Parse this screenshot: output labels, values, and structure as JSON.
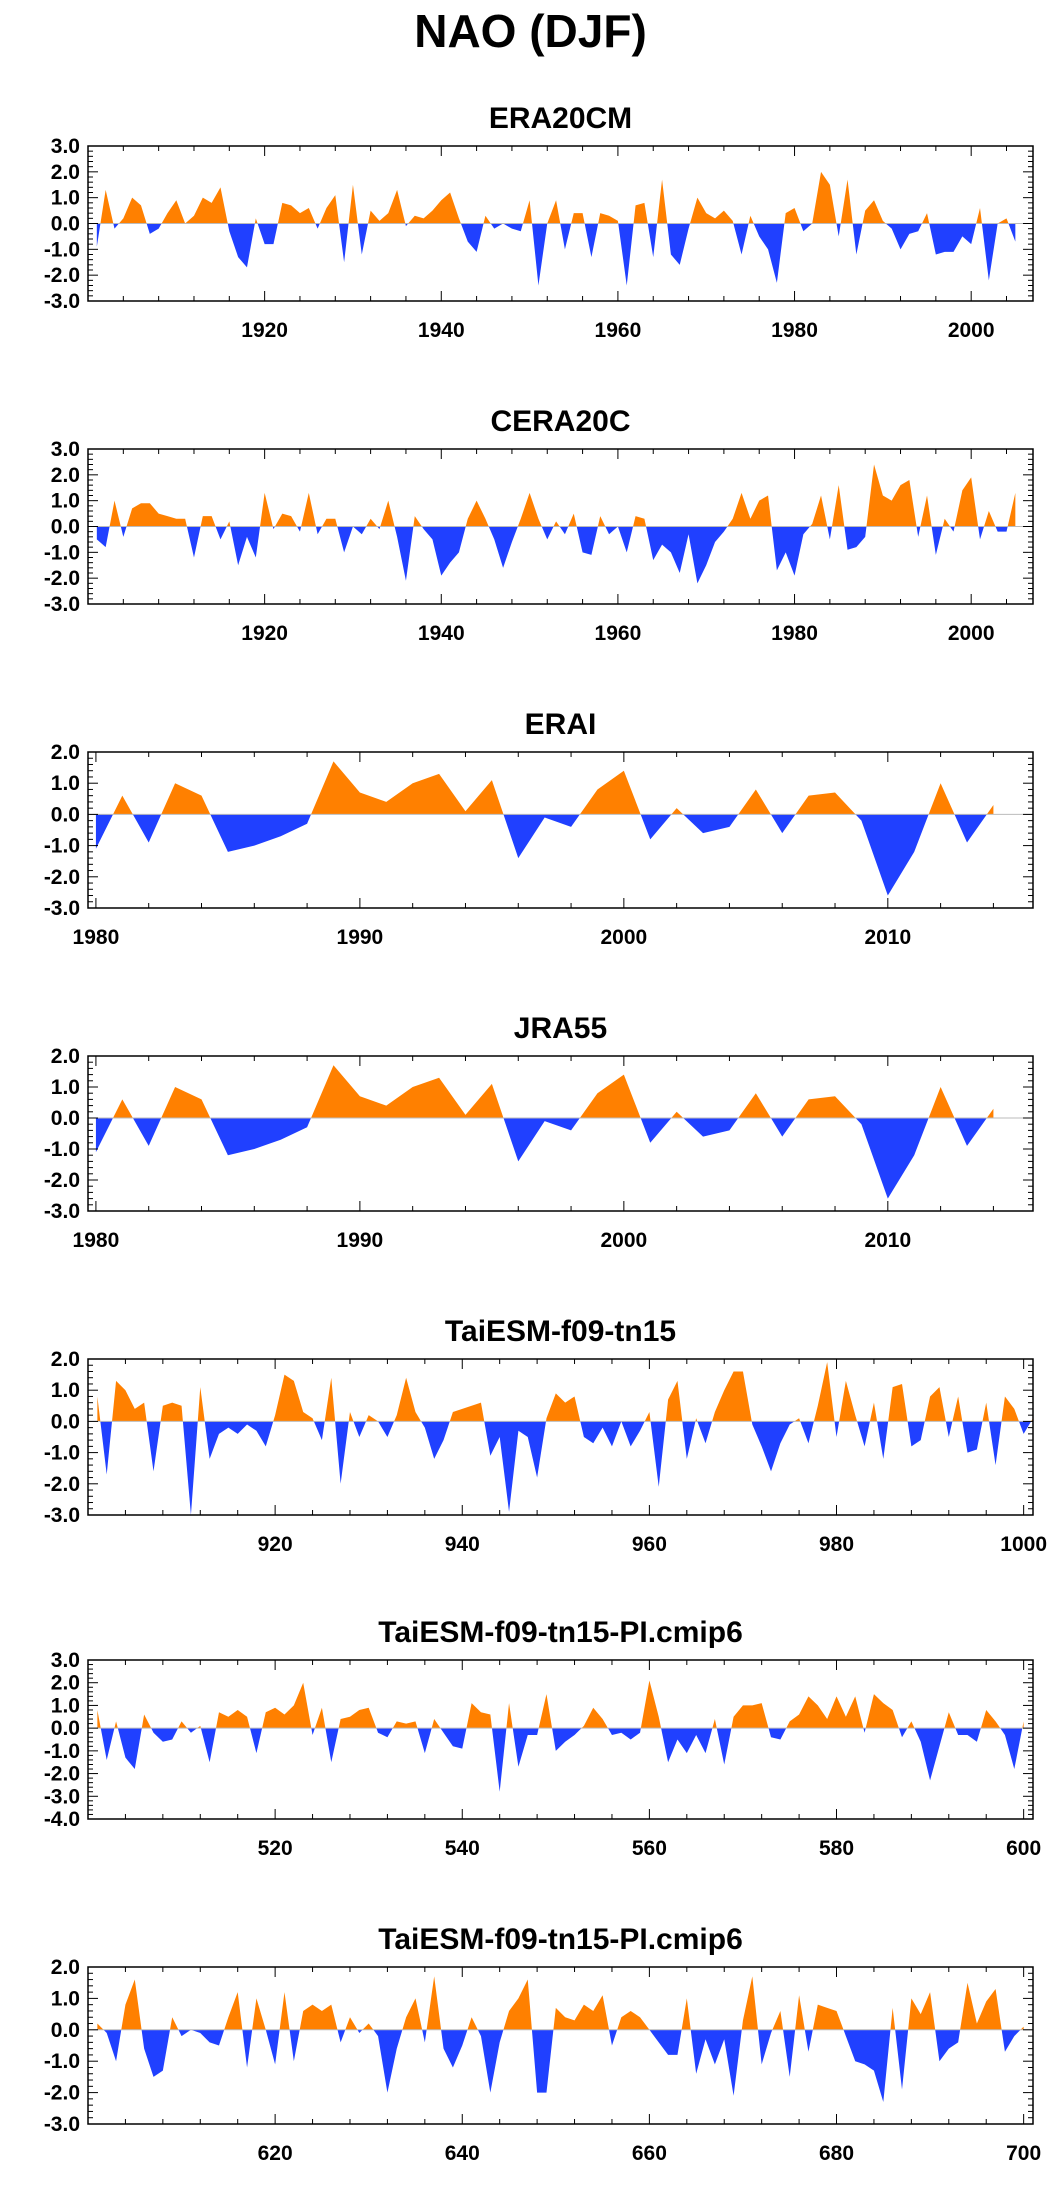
{
  "figure": {
    "title": "NAO (DJF)"
  },
  "colors": {
    "positive": "#ff8000",
    "negative": "#2040ff",
    "axis": "#000000",
    "zero_line": "#bbbbbb"
  },
  "chart_data": [
    {
      "type": "area",
      "title": "ERA20CM",
      "xlim": [
        1900,
        2007
      ],
      "ylim": [
        -3.0,
        3.0
      ],
      "yticks": [
        "3.0",
        "2.0",
        "1.0",
        "0.0",
        "-1.0",
        "-2.0",
        "-3.0"
      ],
      "xticks": [
        1920,
        1940,
        1960,
        1980,
        2000
      ],
      "x_start": 1901,
      "values": [
        -0.9,
        1.3,
        -0.2,
        0.2,
        1.0,
        0.7,
        -0.4,
        -0.2,
        0.4,
        0.9,
        0.0,
        0.3,
        1.0,
        0.8,
        1.4,
        -0.3,
        -1.3,
        -1.7,
        0.2,
        -0.8,
        -0.8,
        0.8,
        0.7,
        0.4,
        0.6,
        -0.2,
        0.6,
        1.1,
        -1.5,
        1.5,
        -1.2,
        0.5,
        0.1,
        0.4,
        1.3,
        -0.1,
        0.3,
        0.2,
        0.5,
        0.9,
        1.2,
        0.2,
        -0.7,
        -1.1,
        0.3,
        -0.2,
        0.0,
        -0.2,
        -0.3,
        0.9,
        -2.4,
        0.0,
        0.9,
        -1.0,
        0.4,
        0.4,
        -1.3,
        0.4,
        0.3,
        0.1,
        -2.4,
        0.7,
        0.8,
        -1.3,
        1.7,
        -1.2,
        -1.6,
        -0.2,
        1.0,
        0.4,
        0.2,
        0.5,
        0.1,
        -1.2,
        0.3,
        -0.5,
        -1.0,
        -2.3,
        0.4,
        0.6,
        -0.3,
        0.0,
        2.0,
        1.5,
        -0.5,
        1.7,
        -1.2,
        0.5,
        0.9,
        0.1,
        -0.2,
        -1.0,
        -0.4,
        -0.3,
        0.4,
        -1.2,
        -1.1,
        -1.1,
        -0.5,
        -0.8,
        0.6,
        -2.2,
        0.0,
        0.2,
        -0.7
      ]
    },
    {
      "type": "area",
      "title": "CERA20C",
      "xlim": [
        1900,
        2007
      ],
      "ylim": [
        -3.0,
        3.0
      ],
      "yticks": [
        "3.0",
        "2.0",
        "1.0",
        "0.0",
        "-1.0",
        "-2.0",
        "-3.0"
      ],
      "xticks": [
        1920,
        1940,
        1960,
        1980,
        2000
      ],
      "x_start": 1901,
      "values": [
        -0.5,
        -0.8,
        1.0,
        -0.4,
        0.7,
        0.9,
        0.9,
        0.5,
        0.4,
        0.3,
        0.3,
        -1.2,
        0.4,
        0.4,
        -0.5,
        0.2,
        -1.5,
        -0.4,
        -1.2,
        1.3,
        -0.1,
        0.5,
        0.4,
        -0.2,
        1.3,
        -0.3,
        0.3,
        0.3,
        -1.0,
        0.0,
        -0.3,
        0.3,
        -0.1,
        1.0,
        -0.4,
        -2.1,
        0.4,
        -0.1,
        -0.5,
        -1.9,
        -1.4,
        -1.0,
        0.3,
        1.0,
        0.3,
        -0.5,
        -1.6,
        -0.6,
        0.3,
        1.3,
        0.3,
        -0.5,
        0.2,
        -0.3,
        0.5,
        -1.0,
        -1.1,
        0.4,
        -0.3,
        0.0,
        -1.0,
        0.4,
        0.3,
        -1.3,
        -0.7,
        -1.0,
        -1.8,
        -0.3,
        -2.2,
        -1.5,
        -0.6,
        -0.2,
        0.3,
        1.3,
        0.3,
        1.0,
        1.2,
        -1.7,
        -1.0,
        -1.9,
        -0.3,
        0.1,
        1.2,
        -0.5,
        1.6,
        -0.9,
        -0.8,
        -0.4,
        2.4,
        1.2,
        1.0,
        1.6,
        1.8,
        -0.4,
        1.2,
        -1.1,
        0.3,
        -0.2,
        1.4,
        1.9,
        -0.5,
        0.6,
        -0.2,
        -0.2,
        1.3
      ]
    },
    {
      "type": "area",
      "title": "ERAI",
      "xlim": [
        1979.7,
        2015.5
      ],
      "ylim": [
        -3.0,
        2.0
      ],
      "yticks": [
        "2.0",
        "1.0",
        "0.0",
        "-1.0",
        "-2.0",
        "-3.0"
      ],
      "xticks": [
        1980,
        1990,
        2000,
        2010
      ],
      "x_start": 1980,
      "values": [
        -1.1,
        0.6,
        -0.9,
        1.0,
        0.6,
        -1.2,
        -1.0,
        -0.7,
        -0.3,
        1.7,
        0.7,
        0.4,
        1.0,
        1.3,
        0.1,
        1.1,
        -1.4,
        -0.1,
        -0.4,
        0.8,
        1.4,
        -0.8,
        0.2,
        -0.6,
        -0.4,
        0.8,
        -0.6,
        0.6,
        0.7,
        -0.2,
        -2.6,
        -1.2,
        1.0,
        -0.9,
        0.3
      ]
    },
    {
      "type": "area",
      "title": "JRA55",
      "xlim": [
        1979.7,
        2015.5
      ],
      "ylim": [
        -3.0,
        2.0
      ],
      "yticks": [
        "2.0",
        "1.0",
        "0.0",
        "-1.0",
        "-2.0",
        "-3.0"
      ],
      "xticks": [
        1980,
        1990,
        2000,
        2010
      ],
      "x_start": 1980,
      "values": [
        -1.1,
        0.6,
        -0.9,
        1.0,
        0.6,
        -1.2,
        -1.0,
        -0.7,
        -0.3,
        1.7,
        0.7,
        0.4,
        1.0,
        1.3,
        0.1,
        1.1,
        -1.4,
        -0.1,
        -0.4,
        0.8,
        1.4,
        -0.8,
        0.2,
        -0.6,
        -0.4,
        0.8,
        -0.6,
        0.6,
        0.7,
        -0.2,
        -2.6,
        -1.2,
        1.0,
        -0.9,
        0.3
      ]
    },
    {
      "type": "area",
      "title": "TaiESM-f09-tn15",
      "xlim": [
        900,
        1001
      ],
      "ylim": [
        -3.0,
        2.0
      ],
      "yticks": [
        "2.0",
        "1.0",
        "0.0",
        "-1.0",
        "-2.0",
        "-3.0"
      ],
      "xticks": [
        920,
        940,
        960,
        980,
        1000
      ],
      "x_start": 901,
      "values": [
        0.8,
        -1.7,
        1.3,
        1.0,
        0.4,
        0.6,
        -1.6,
        0.5,
        0.6,
        0.5,
        -3.0,
        1.1,
        -1.2,
        -0.4,
        -0.2,
        -0.4,
        -0.1,
        -0.3,
        -0.8,
        0.2,
        1.5,
        1.3,
        0.3,
        0.1,
        -0.6,
        1.4,
        -2.0,
        0.3,
        -0.5,
        0.2,
        0.0,
        -0.5,
        0.2,
        1.4,
        0.3,
        -0.2,
        -1.2,
        -0.6,
        0.3,
        0.4,
        0.5,
        0.6,
        -1.1,
        -0.5,
        -2.9,
        -0.3,
        -0.5,
        -1.8,
        0.1,
        0.9,
        0.6,
        0.8,
        -0.5,
        -0.7,
        -0.2,
        -0.8,
        0.0,
        -0.8,
        -0.3,
        0.3,
        -2.1,
        0.7,
        1.3,
        -1.2,
        0.1,
        -0.7,
        0.3,
        1.0,
        1.6,
        1.6,
        -0.1,
        -0.8,
        -1.6,
        -0.7,
        -0.1,
        0.1,
        -0.7,
        0.5,
        1.9,
        -0.5,
        1.3,
        0.2,
        -0.8,
        0.6,
        -1.2,
        1.1,
        1.2,
        -0.8,
        -0.6,
        0.8,
        1.1,
        -0.5,
        0.8,
        -1.0,
        -0.9,
        0.6,
        -1.4,
        0.8,
        0.4,
        -0.4,
        0.1
      ]
    },
    {
      "type": "area",
      "title": "TaiESM-f09-tn15-PI.cmip6",
      "xlim": [
        500,
        601
      ],
      "ylim": [
        -4.0,
        3.0
      ],
      "yticks": [
        "3.0",
        "2.0",
        "1.0",
        "0.0",
        "-1.0",
        "-2.0",
        "-3.0",
        "-4.0"
      ],
      "xticks": [
        520,
        540,
        560,
        580,
        600
      ],
      "x_start": 501,
      "values": [
        0.8,
        -1.4,
        0.3,
        -1.3,
        -1.8,
        0.6,
        -0.2,
        -0.6,
        -0.5,
        0.3,
        -0.2,
        0.1,
        -1.5,
        0.7,
        0.5,
        0.8,
        0.5,
        -1.1,
        0.7,
        0.9,
        0.6,
        1.0,
        2.0,
        -0.3,
        0.9,
        -1.5,
        0.4,
        0.5,
        0.8,
        0.9,
        -0.2,
        -0.4,
        0.3,
        0.2,
        0.3,
        -1.1,
        0.4,
        -0.2,
        -0.8,
        -0.9,
        1.1,
        0.7,
        0.6,
        -2.8,
        1.1,
        -1.7,
        -0.3,
        -0.3,
        1.5,
        -1.0,
        -0.6,
        -0.3,
        0.1,
        0.9,
        0.4,
        -0.3,
        -0.2,
        -0.5,
        -0.2,
        2.1,
        0.5,
        -1.5,
        -0.5,
        -1.1,
        -0.3,
        -1.1,
        0.4,
        -1.6,
        0.5,
        1.0,
        1.0,
        1.1,
        -0.4,
        -0.5,
        0.3,
        0.6,
        1.4,
        1.0,
        0.4,
        1.4,
        0.5,
        1.4,
        -0.2,
        1.5,
        1.1,
        0.8,
        -0.4,
        0.3,
        -0.6,
        -2.3,
        -0.8,
        0.7,
        -0.3,
        -0.3,
        -0.6,
        0.8,
        0.3,
        -0.3,
        -1.8,
        0.3
      ]
    },
    {
      "type": "area",
      "title": "TaiESM-f09-tn15-PI.cmip6",
      "xlim": [
        600,
        701
      ],
      "ylim": [
        -3.0,
        2.0
      ],
      "yticks": [
        "2.0",
        "1.0",
        "0.0",
        "-1.0",
        "-2.0",
        "-3.0"
      ],
      "xticks": [
        620,
        640,
        660,
        680,
        700
      ],
      "x_start": 601,
      "values": [
        0.2,
        -0.1,
        -1.0,
        0.8,
        1.6,
        -0.6,
        -1.5,
        -1.3,
        0.4,
        -0.2,
        0.0,
        -0.1,
        -0.4,
        -0.5,
        0.4,
        1.2,
        -1.2,
        1.0,
        0.0,
        -1.1,
        1.2,
        -1.0,
        0.6,
        0.8,
        0.6,
        0.8,
        -0.4,
        0.4,
        -0.1,
        0.2,
        -0.2,
        -2.0,
        -0.6,
        0.4,
        1.0,
        -0.4,
        1.7,
        -0.6,
        -1.2,
        -0.5,
        0.4,
        -0.2,
        -2.0,
        -0.4,
        0.6,
        1.0,
        1.6,
        -2.0,
        -2.0,
        0.7,
        0.4,
        0.3,
        0.8,
        0.6,
        1.1,
        -0.5,
        0.4,
        0.6,
        0.4,
        0.0,
        -0.4,
        -0.8,
        -0.8,
        1.0,
        -1.4,
        -0.3,
        -1.1,
        -0.3,
        -2.1,
        0.3,
        1.7,
        -1.1,
        -0.1,
        0.6,
        -1.5,
        1.1,
        -0.7,
        0.8,
        0.7,
        0.6,
        -0.2,
        -1.0,
        -1.1,
        -1.3,
        -2.3,
        0.7,
        -1.9,
        1.0,
        0.5,
        1.2,
        -1.0,
        -0.6,
        -0.4,
        1.5,
        0.2,
        0.9,
        1.3,
        -0.7,
        -0.2,
        0.1
      ]
    }
  ]
}
